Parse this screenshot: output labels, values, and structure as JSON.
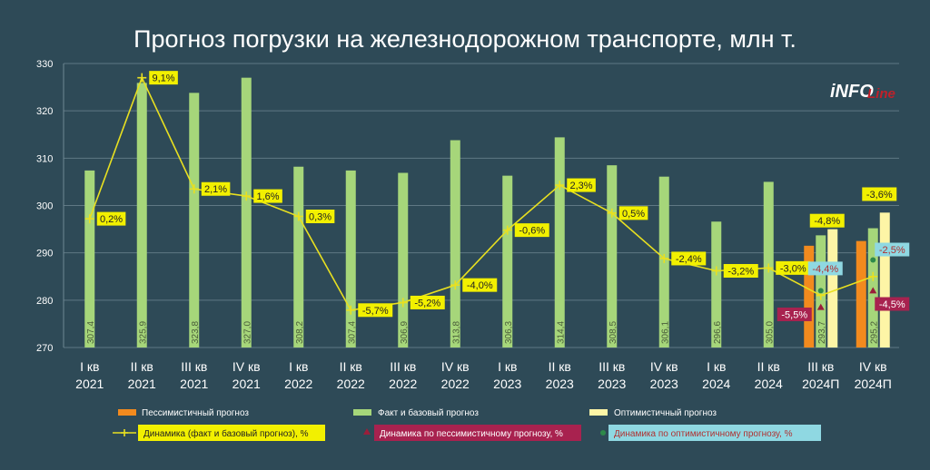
{
  "title": "Прогноз погрузки на железнодорожном транспорте, млн т.",
  "logo": {
    "main": "iNFO",
    "sub": "Line"
  },
  "colors": {
    "background": "#2e4a57",
    "fact": "#a6d67a",
    "pessimistic": "#f28a1e",
    "optimistic": "#fdf5a6",
    "dynamics_line": "#e8e020",
    "label_fill": "#f2f000",
    "pess_label": "#a8224f",
    "opt_label": "#8fd8e2",
    "text": "#ffffff"
  },
  "chart_data": {
    "type": "bar",
    "ylim": [
      270,
      330
    ],
    "yticks": [
      "270",
      "280",
      "290",
      "300",
      "310",
      "320",
      "330"
    ],
    "grid": true,
    "categories": [
      [
        "I кв",
        "2021"
      ],
      [
        "II кв",
        "2021"
      ],
      [
        "III кв",
        "2021"
      ],
      [
        "IV кв",
        "2021"
      ],
      [
        "I кв",
        "2022"
      ],
      [
        "II кв",
        "2022"
      ],
      [
        "III кв",
        "2022"
      ],
      [
        "IV кв",
        "2022"
      ],
      [
        "I кв",
        "2023"
      ],
      [
        "II кв",
        "2023"
      ],
      [
        "III кв",
        "2023"
      ],
      [
        "IV кв",
        "2023"
      ],
      [
        "I кв",
        "2024"
      ],
      [
        "II кв",
        "2024"
      ],
      [
        "III кв",
        "2024П"
      ],
      [
        "IV кв",
        "2024П"
      ]
    ],
    "fact": {
      "name": "Факт и базовый прогноз",
      "values": [
        307.4,
        325.9,
        323.8,
        327.0,
        308.2,
        307.4,
        306.9,
        313.8,
        306.3,
        314.4,
        308.5,
        306.1,
        296.6,
        305.0,
        293.7,
        295.2
      ],
      "labels": [
        "307,4",
        "325,9",
        "323,8",
        "327,0",
        "308,2",
        "307,4",
        "306,9",
        "313,8",
        "306,3",
        "314,4",
        "308,5",
        "306,1",
        "296,6",
        "305,0",
        "293,7",
        "295,2"
      ]
    },
    "pessimistic": {
      "name": "Пессимистичный  прогноз",
      "values": [
        null,
        null,
        null,
        null,
        null,
        null,
        null,
        null,
        null,
        null,
        null,
        null,
        null,
        null,
        291.5,
        292.5
      ],
      "dynamics_values": [
        null,
        null,
        null,
        null,
        null,
        null,
        null,
        null,
        null,
        null,
        null,
        null,
        null,
        null,
        278.5,
        282
      ],
      "dynamics_labels": [
        null,
        null,
        null,
        null,
        null,
        null,
        null,
        null,
        null,
        null,
        null,
        null,
        null,
        null,
        "-5,5%",
        "-4,5%"
      ]
    },
    "optimistic": {
      "name": "Оптимистичный прогноз",
      "values": [
        null,
        null,
        null,
        null,
        null,
        null,
        null,
        null,
        null,
        null,
        null,
        null,
        null,
        null,
        295,
        298.5
      ],
      "dynamics_values": [
        null,
        null,
        null,
        null,
        null,
        null,
        null,
        null,
        null,
        null,
        null,
        null,
        null,
        null,
        282,
        288.5
      ],
      "dynamics_labels": [
        null,
        null,
        null,
        null,
        null,
        null,
        null,
        null,
        null,
        null,
        null,
        null,
        null,
        null,
        "-4,4%",
        "-2,5%"
      ]
    },
    "dynamics": {
      "name": "Динамика (факт и базовый прогноз), %",
      "values": [
        297.2,
        327,
        303.5,
        302,
        297.7,
        277.9,
        279.5,
        283.2,
        294.8,
        304.3,
        298.4,
        288.8,
        286.2,
        286.8,
        281,
        285
      ],
      "labels": [
        "0,2%",
        "9,1%",
        "2,1%",
        "1,6%",
        "0,3%",
        "-5,7%",
        "-5,2%",
        "-4,0%",
        "-0,6%",
        "2,3%",
        "0,5%",
        "-2,4%",
        "-3,2%",
        "-3,0%",
        "-4,8%",
        "-3,6%"
      ]
    },
    "legend": {
      "placement": "bottom",
      "pess_dynamics": "Динамика по пессимистичному прогнозу, %",
      "opt_dynamics": "Динамика по оптимистичному прогнозу, %"
    }
  }
}
